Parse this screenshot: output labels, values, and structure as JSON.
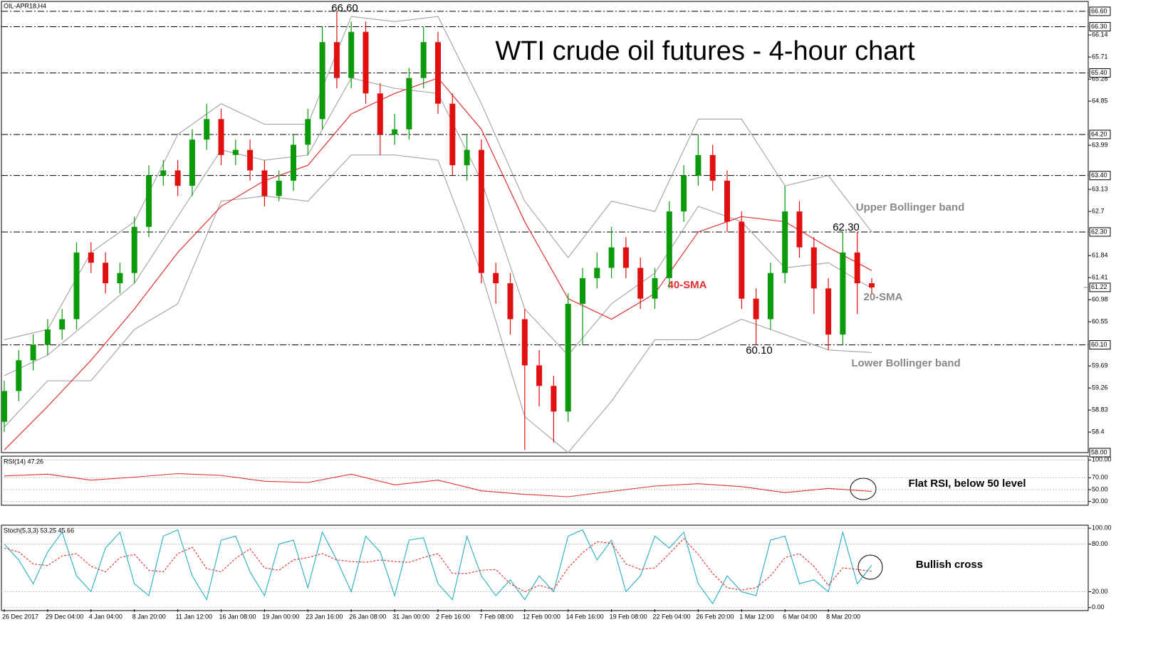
{
  "chart_data": [
    {
      "type": "candlestick",
      "symbol": "OIL-APR18,H4",
      "title": "WTI crude oil futures - 4-hour chart",
      "up_color": "#0a9a0a",
      "down_color": "#e01010",
      "categories": [
        "26 Dec 2017",
        null,
        null,
        "29 Dec 04:00",
        null,
        null,
        "4 Jan 04:00",
        null,
        null,
        "8 Jan 20:00",
        null,
        null,
        "11 Jan 12:00",
        null,
        null,
        "16 Jan 08:00",
        null,
        null,
        "19 Jan 00:00",
        null,
        null,
        "23 Jan 16:00",
        null,
        null,
        "26 Jan 08:00",
        null,
        null,
        "31 Jan 00:00",
        null,
        null,
        "2 Feb 16:00",
        null,
        null,
        "7 Feb 08:00",
        null,
        null,
        "12 Feb 00:00",
        null,
        null,
        "14 Feb 16:00",
        null,
        null,
        "19 Feb 08:00",
        null,
        null,
        "22 Feb 04:00",
        null,
        null,
        "26 Feb 20:00",
        null,
        null,
        "1 Mar 12:00",
        null,
        null,
        "6 Mar 04:00",
        null,
        null,
        "8 Mar 20:00",
        null,
        null,
        null
      ],
      "open": [
        58.6,
        59.2,
        59.8,
        60.1,
        60.4,
        60.6,
        61.9,
        61.7,
        61.3,
        61.5,
        62.4,
        63.4,
        63.5,
        63.2,
        64.1,
        64.5,
        63.8,
        63.9,
        63.5,
        63.0,
        63.3,
        64.0,
        64.5,
        66.0,
        65.3,
        66.2,
        65.0,
        64.2,
        64.3,
        65.3,
        66.0,
        64.8,
        63.6,
        63.9,
        61.5,
        61.3,
        60.6,
        59.7,
        59.3,
        58.8,
        60.9,
        61.4,
        61.6,
        62.0,
        61.6,
        61.0,
        61.4,
        62.7,
        63.4,
        63.8,
        63.3,
        62.5,
        61.0,
        60.6,
        61.5,
        62.7,
        62.0,
        61.2,
        60.3,
        61.9,
        61.3
      ],
      "high": [
        59.4,
        60.0,
        60.3,
        60.6,
        60.8,
        62.1,
        62.1,
        61.9,
        61.7,
        62.6,
        63.6,
        63.7,
        63.7,
        64.3,
        64.8,
        64.7,
        64.1,
        64.1,
        63.7,
        63.5,
        64.2,
        64.7,
        66.3,
        66.6,
        66.4,
        66.4,
        65.2,
        64.6,
        65.5,
        66.3,
        66.2,
        65.0,
        64.2,
        64.1,
        61.7,
        61.5,
        60.8,
        60.0,
        59.5,
        61.1,
        61.6,
        61.9,
        62.4,
        62.2,
        61.8,
        61.6,
        62.9,
        63.6,
        64.2,
        64.0,
        63.5,
        62.7,
        61.2,
        61.7,
        63.2,
        62.9,
        62.2,
        61.4,
        62.3,
        62.3,
        61.4
      ],
      "low": [
        58.4,
        59.0,
        59.6,
        59.9,
        60.2,
        60.4,
        61.5,
        61.1,
        61.1,
        61.3,
        62.2,
        63.2,
        63.0,
        63.0,
        63.9,
        63.6,
        63.6,
        63.3,
        62.8,
        62.9,
        63.1,
        63.8,
        64.3,
        65.1,
        65.1,
        64.8,
        63.8,
        64.0,
        64.1,
        65.1,
        64.6,
        63.4,
        63.3,
        61.3,
        60.9,
        60.3,
        58.05,
        58.9,
        58.2,
        58.6,
        60.1,
        61.2,
        61.4,
        61.4,
        60.8,
        60.8,
        61.2,
        62.5,
        63.2,
        63.1,
        62.3,
        60.8,
        60.1,
        60.4,
        61.3,
        61.8,
        60.7,
        60.0,
        60.1,
        60.7,
        61.1
      ],
      "close": [
        59.2,
        59.8,
        60.1,
        60.4,
        60.6,
        61.9,
        61.7,
        61.3,
        61.5,
        62.4,
        63.4,
        63.5,
        63.2,
        64.1,
        64.5,
        63.8,
        63.9,
        63.5,
        63.0,
        63.3,
        64.0,
        64.5,
        66.0,
        65.3,
        66.2,
        65.0,
        64.2,
        64.3,
        65.3,
        66.0,
        64.8,
        63.6,
        63.9,
        61.5,
        61.3,
        60.6,
        59.7,
        59.3,
        58.8,
        60.9,
        61.4,
        61.6,
        62.0,
        61.6,
        61.0,
        61.4,
        62.7,
        63.4,
        63.8,
        63.3,
        62.5,
        61.0,
        60.6,
        61.5,
        62.7,
        62.0,
        61.2,
        60.3,
        61.9,
        61.3,
        61.22
      ],
      "overlays": [
        {
          "name": "Upper Bollinger band",
          "color": "#a8a8a8",
          "x": [
            0,
            3,
            6,
            9,
            12,
            15,
            18,
            21,
            24,
            27,
            30,
            33,
            36,
            39,
            42,
            45,
            48,
            51,
            54,
            57,
            60
          ],
          "values": [
            60.2,
            60.4,
            61.9,
            62.5,
            64.2,
            64.8,
            64.4,
            64.4,
            66.5,
            66.4,
            66.5,
            64.8,
            62.9,
            61.8,
            62.9,
            62.7,
            64.5,
            64.5,
            63.2,
            63.4,
            62.3
          ]
        },
        {
          "name": "20-SMA",
          "color": "#a8a8a8",
          "x": [
            0,
            3,
            6,
            9,
            12,
            15,
            18,
            21,
            24,
            27,
            30,
            33,
            36,
            39,
            42,
            45,
            48,
            51,
            54,
            57,
            60
          ],
          "values": [
            59.5,
            59.9,
            60.6,
            61.3,
            62.6,
            63.9,
            63.7,
            63.8,
            65.3,
            65.1,
            65.0,
            63.3,
            60.8,
            59.9,
            60.9,
            61.5,
            62.8,
            62.5,
            61.6,
            61.7,
            61.2
          ]
        },
        {
          "name": "Lower Bollinger band",
          "color": "#a8a8a8",
          "x": [
            0,
            3,
            6,
            9,
            12,
            15,
            18,
            21,
            24,
            27,
            30,
            33,
            36,
            39,
            42,
            45,
            48,
            51,
            54,
            57,
            60
          ],
          "values": [
            58.5,
            59.4,
            59.4,
            60.4,
            60.9,
            62.9,
            63.0,
            62.9,
            63.8,
            63.8,
            63.7,
            61.5,
            58.7,
            58.0,
            59.0,
            60.2,
            60.2,
            60.6,
            60.3,
            60.0,
            59.95
          ]
        },
        {
          "name": "40-SMA",
          "color": "#e03030",
          "x": [
            0,
            3,
            6,
            9,
            12,
            15,
            18,
            21,
            24,
            27,
            30,
            33,
            36,
            39,
            42,
            45,
            48,
            51,
            54,
            57,
            60
          ],
          "values": [
            58.05,
            58.9,
            59.8,
            60.8,
            61.9,
            62.8,
            63.3,
            63.6,
            64.6,
            65.0,
            65.3,
            64.3,
            62.5,
            61.0,
            60.6,
            61.1,
            62.3,
            62.6,
            62.5,
            62.0,
            61.55
          ]
        }
      ],
      "annotations": [
        "66.60",
        "62.30",
        "60.10"
      ],
      "ylim": [
        58.0,
        66.71
      ],
      "yticks": [
        66.14,
        65.71,
        65.28,
        64.85,
        63.99,
        63.13,
        62.7,
        61.84,
        61.41,
        60.98,
        60.55,
        59.69,
        59.26,
        58.83,
        58.4
      ],
      "levels": [
        {
          "value": 66.6,
          "label": "66.60"
        },
        {
          "value": 66.3,
          "label": "66.30"
        },
        {
          "value": 65.4,
          "label": "65.40"
        },
        {
          "value": 64.2,
          "label": "64.20"
        },
        {
          "value": 63.4,
          "label": "63.40"
        },
        {
          "value": 62.3,
          "label": "62.30"
        },
        {
          "value": 60.1,
          "label": "60.10"
        },
        {
          "value": 58.0,
          "label": "58.00"
        }
      ],
      "current_price": {
        "value": 61.22,
        "label": "61.22"
      }
    },
    {
      "type": "line",
      "title": "RSI(14) 47.26",
      "annotation": "Flat RSI, below 50 level",
      "grid": true,
      "ylim": [
        26,
        104
      ],
      "yticks": [
        {
          "value": 100,
          "label": "100.00"
        },
        {
          "value": 70,
          "label": "70.00"
        },
        {
          "value": 50,
          "label": "50.00"
        },
        {
          "value": 30,
          "label": "30.00"
        }
      ],
      "series": [
        {
          "color": "#e03030",
          "x": [
            0,
            3,
            6,
            9,
            12,
            15,
            18,
            21,
            24,
            27,
            30,
            33,
            36,
            39,
            42,
            45,
            48,
            51,
            54,
            57,
            60
          ],
          "values": [
            73,
            76,
            66,
            71,
            77,
            74,
            64,
            62,
            76,
            58,
            66,
            48,
            42,
            38,
            47,
            56,
            60,
            55,
            45,
            52,
            47
          ]
        }
      ]
    },
    {
      "type": "line",
      "title": "Stoch(5,3,3) 53.25 45.66",
      "annotation": "Bullish cross",
      "grid": true,
      "ylim": [
        -2,
        102
      ],
      "yticks": [
        {
          "value": 100,
          "label": "100.00"
        },
        {
          "value": 80,
          "label": "80.00"
        },
        {
          "value": 20,
          "label": "20.00"
        },
        {
          "value": 0,
          "label": "0.00"
        }
      ],
      "series": [
        {
          "color": "#20b0c0",
          "values": [
            80,
            60,
            30,
            70,
            95,
            40,
            20,
            75,
            95,
            30,
            15,
            90,
            98,
            40,
            10,
            85,
            90,
            45,
            15,
            80,
            85,
            25,
            95,
            60,
            20,
            90,
            70,
            15,
            85,
            88,
            30,
            10,
            90,
            40,
            15,
            35,
            10,
            40,
            20,
            90,
            98,
            60,
            85,
            20,
            40,
            90,
            75,
            95,
            30,
            5,
            40,
            20,
            15,
            85,
            90,
            30,
            35,
            20,
            95,
            30,
            53.25
          ]
        },
        {
          "color": "#e03030",
          "dash": true,
          "values": [
            75,
            70,
            55,
            53,
            65,
            68,
            52,
            45,
            63,
            67,
            47,
            45,
            68,
            76,
            49,
            45,
            62,
            74,
            50,
            47,
            60,
            63,
            68,
            60,
            58,
            57,
            60,
            58,
            57,
            63,
            68,
            43,
            43,
            47,
            48,
            30,
            20,
            28,
            23,
            50,
            69,
            83,
            81,
            55,
            48,
            50,
            68,
            87,
            67,
            43,
            25,
            22,
            25,
            40,
            63,
            68,
            52,
            28,
            50,
            48,
            45.66
          ]
        }
      ]
    }
  ]
}
